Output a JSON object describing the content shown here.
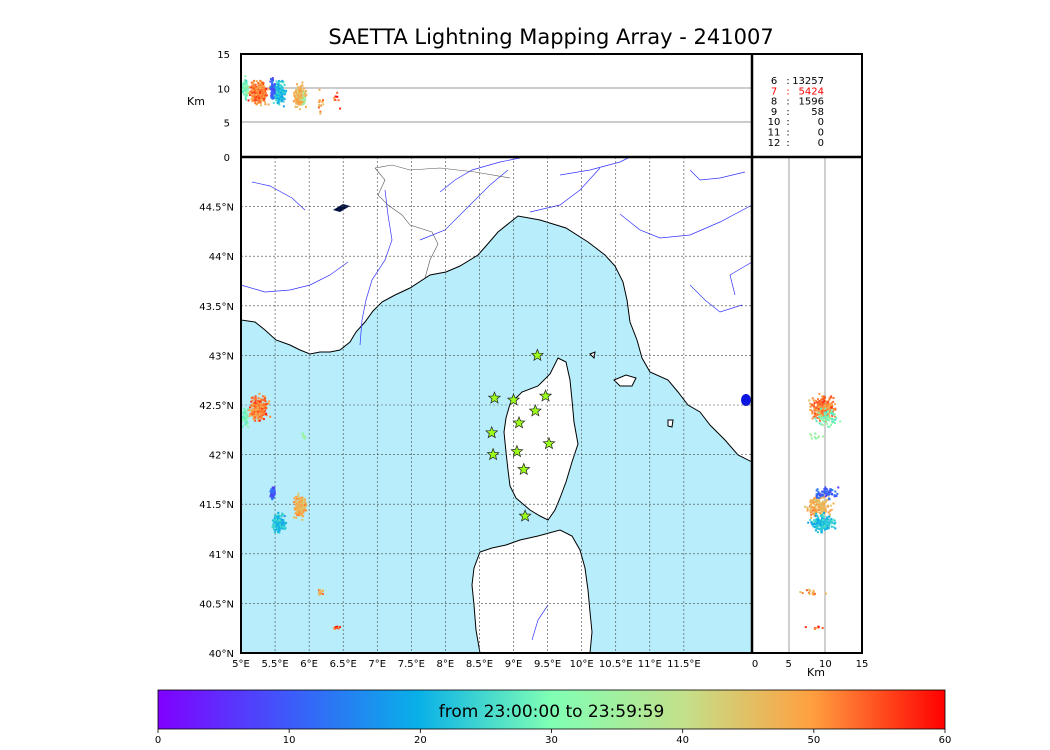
{
  "title": "SAETTA Lightning Mapping Array - 241007",
  "chart_data": {
    "type": "scatter",
    "title": "SAETTA Lightning Mapping Array - 241007",
    "map": {
      "lon_range": [
        5,
        12.5
      ],
      "lat_range": [
        40,
        45
      ],
      "lon_ticks": [
        "5°E",
        "5.5°E",
        "6°E",
        "6.5°E",
        "7°E",
        "7.5°E",
        "8°E",
        "8.5°E",
        "9°E",
        "9.5°E",
        "10°E",
        "10.5°E",
        "11°E",
        "11.5°E"
      ],
      "lon_tick_values": [
        5,
        5.5,
        6,
        6.5,
        7,
        7.5,
        8,
        8.5,
        9,
        9.5,
        10,
        10.5,
        11,
        11.5
      ],
      "lat_ticks": [
        "40°N",
        "40.5°N",
        "41°N",
        "41.5°N",
        "42°N",
        "42.5°N",
        "43°N",
        "43.5°N",
        "44°N",
        "44.5°N"
      ],
      "lat_tick_values": [
        40,
        40.5,
        41,
        41.5,
        42,
        42.5,
        43,
        43.5,
        44,
        44.5
      ],
      "grid": true
    },
    "altitude_axis": {
      "label": "Km",
      "ticks": [
        "0",
        "5",
        "10",
        "15"
      ],
      "tick_values": [
        0,
        5,
        10,
        15
      ],
      "range": [
        0,
        15
      ]
    },
    "stations": [
      {
        "lon": 8.72,
        "lat": 42.57
      },
      {
        "lon": 9.0,
        "lat": 42.55
      },
      {
        "lon": 9.35,
        "lat": 43.0
      },
      {
        "lon": 9.47,
        "lat": 42.59
      },
      {
        "lon": 9.32,
        "lat": 42.44
      },
      {
        "lon": 9.08,
        "lat": 42.32
      },
      {
        "lon": 8.68,
        "lat": 42.22
      },
      {
        "lon": 9.52,
        "lat": 42.11
      },
      {
        "lon": 8.7,
        "lat": 42.0
      },
      {
        "lon": 9.05,
        "lat": 42.03
      },
      {
        "lon": 9.15,
        "lat": 41.85
      },
      {
        "lon": 9.17,
        "lat": 41.38
      }
    ],
    "clusters": [
      {
        "lon": 5.25,
        "lat": 42.47,
        "lon_spread": 0.18,
        "lat_spread": 0.18,
        "alt": 9.5,
        "time_min": 52,
        "count": 260
      },
      {
        "lon": 5.05,
        "lat": 42.38,
        "lon_spread": 0.07,
        "lat_spread": 0.12,
        "alt": 10,
        "time_min": 30,
        "count": 60
      },
      {
        "lon": 5.85,
        "lat": 41.48,
        "lon_spread": 0.12,
        "lat_spread": 0.15,
        "alt": 9,
        "time_min": 48,
        "count": 170
      },
      {
        "lon": 5.55,
        "lat": 41.32,
        "lon_spread": 0.14,
        "lat_spread": 0.12,
        "alt": 9.5,
        "time_min": 22,
        "count": 200
      },
      {
        "lon": 5.45,
        "lat": 41.62,
        "lon_spread": 0.05,
        "lat_spread": 0.08,
        "alt": 10,
        "time_min": 11,
        "count": 60
      },
      {
        "lon": 5.9,
        "lat": 42.2,
        "lon_spread": 0.05,
        "lat_spread": 0.04,
        "alt": 8,
        "time_min": 34,
        "count": 10
      },
      {
        "lon": 6.15,
        "lat": 40.62,
        "lon_spread": 0.07,
        "lat_spread": 0.05,
        "alt": 8,
        "time_min": 50,
        "count": 15
      },
      {
        "lon": 6.4,
        "lat": 40.27,
        "lon_spread": 0.08,
        "lat_spread": 0.03,
        "alt": 8,
        "time_min": 56,
        "count": 8
      }
    ],
    "stats": {
      "rows": [
        {
          "n": "6",
          "value": "13257",
          "color": "#000000"
        },
        {
          "n": "7",
          "value": "5424",
          "color": "#ff0000"
        },
        {
          "n": "8",
          "value": "1596",
          "color": "#000000"
        },
        {
          "n": "9",
          "value": "58",
          "color": "#000000"
        },
        {
          "n": "10",
          "value": "0",
          "color": "#000000"
        },
        {
          "n": "11",
          "value": "0",
          "color": "#000000"
        },
        {
          "n": "12",
          "value": "0",
          "color": "#000000"
        }
      ]
    },
    "colorbar": {
      "label": "from 23:00:00 to 23:59:59",
      "ticks": [
        "0",
        "10",
        "20",
        "30",
        "40",
        "50",
        "60"
      ],
      "tick_values": [
        0,
        10,
        20,
        30,
        40,
        50,
        60
      ],
      "range": [
        0,
        60
      ],
      "colormap": "rainbow"
    },
    "colors": {
      "sea": "#b8eefc",
      "land": "#ffffff",
      "rivers": "#3333ff",
      "stations": "#9bff1a"
    }
  }
}
